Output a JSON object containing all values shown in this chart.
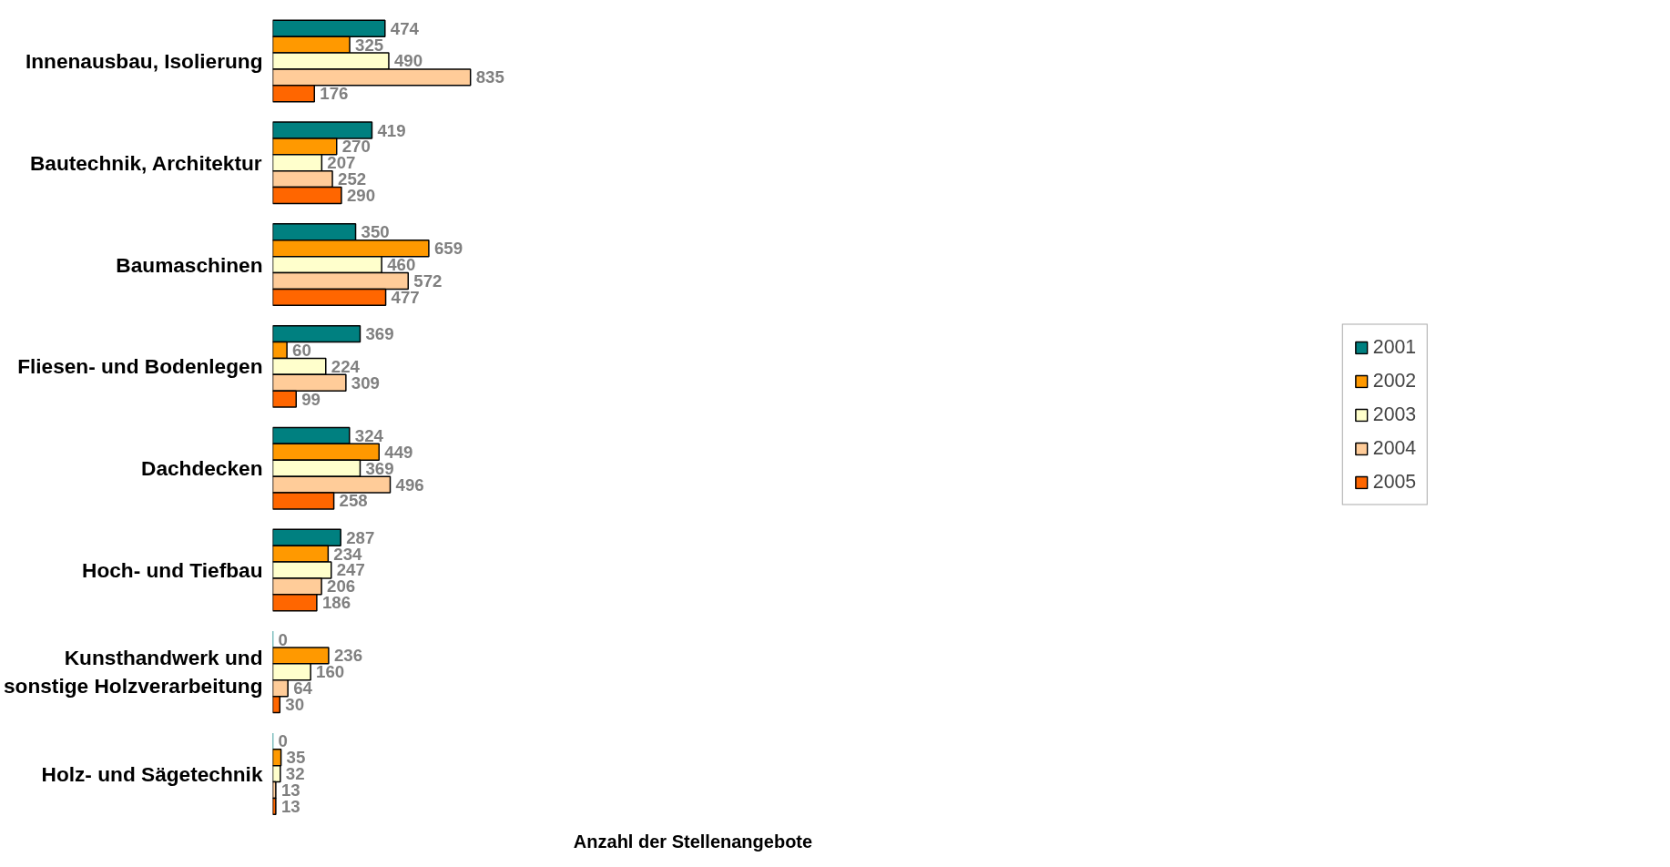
{
  "chart_data": {
    "type": "bar",
    "orientation": "horizontal",
    "annotations": [
      "Anzahl der Stellenangebote"
    ],
    "categories": [
      "Innenausbau, Isolierung",
      "Bautechnik, Architektur",
      "Baumaschinen",
      "Fliesen- und Bodenlegen",
      "Dachdecken",
      "Hoch- und Tiefbau",
      "Kunsthandwerk und sonstige Holzverarbeitung",
      "Holz- und Sägetechnik"
    ],
    "series": [
      {
        "name": "2001",
        "color": "#008080",
        "values": [
          474,
          419,
          350,
          369,
          324,
          287,
          0,
          0
        ]
      },
      {
        "name": "2002",
        "color": "#ff9900",
        "values": [
          325,
          270,
          659,
          60,
          449,
          234,
          236,
          35
        ]
      },
      {
        "name": "2003",
        "color": "#ffffcc",
        "values": [
          490,
          207,
          460,
          224,
          369,
          247,
          160,
          32
        ]
      },
      {
        "name": "2004",
        "color": "#ffcc99",
        "values": [
          835,
          252,
          572,
          309,
          496,
          206,
          64,
          13
        ]
      },
      {
        "name": "2005",
        "color": "#ff6600",
        "values": [
          176,
          290,
          477,
          99,
          258,
          186,
          30,
          13
        ]
      }
    ],
    "data_labels": true,
    "legend": "right",
    "grid": false,
    "tick_labels": "y"
  }
}
